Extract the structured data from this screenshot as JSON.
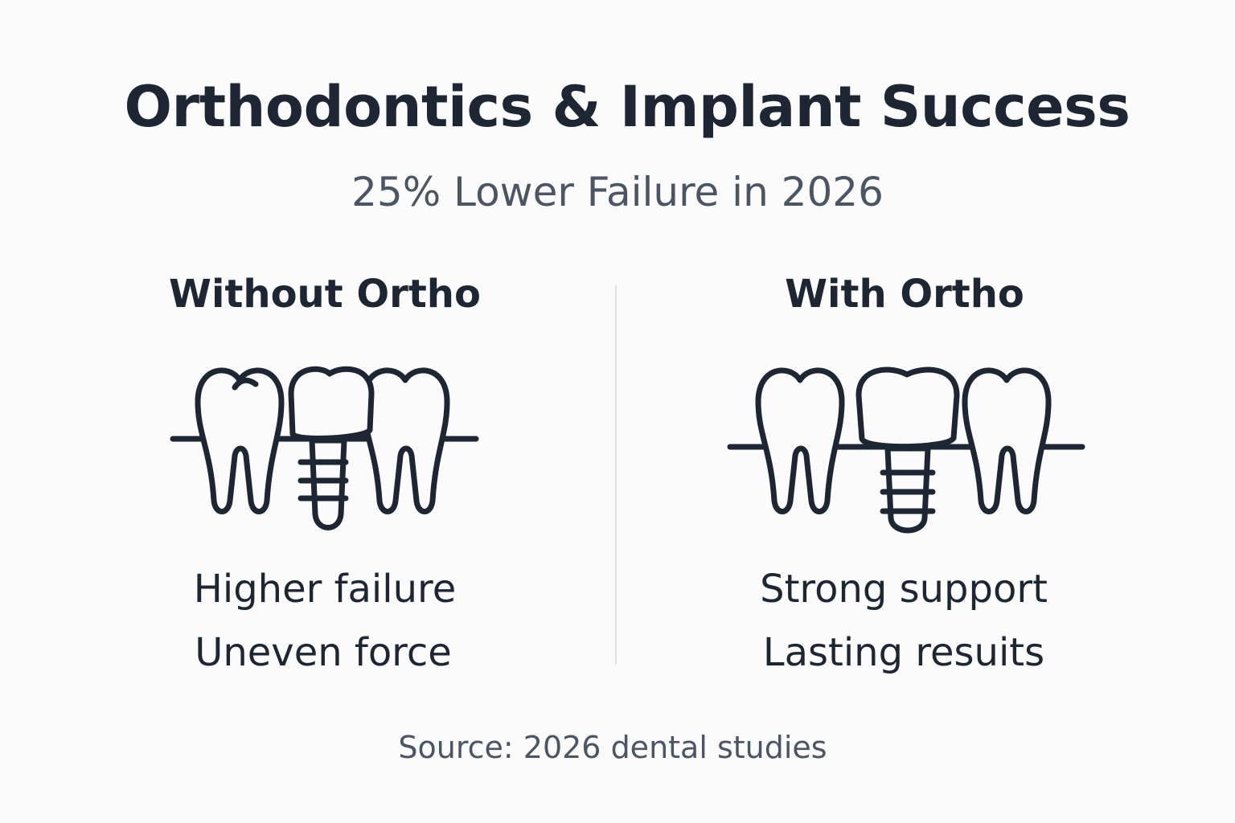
{
  "header": {
    "title": "Orthodontics & Implant Success",
    "subtitle": "25% Lower Failure in 2026"
  },
  "panels": [
    {
      "heading": "Without Ortho",
      "points": [
        "Higher failure",
        "Uneven force"
      ]
    },
    {
      "heading": "With Ortho",
      "points": [
        "Strong support",
        "Lasting resuits"
      ]
    }
  ],
  "source": "Source: 2026 dental studies"
}
